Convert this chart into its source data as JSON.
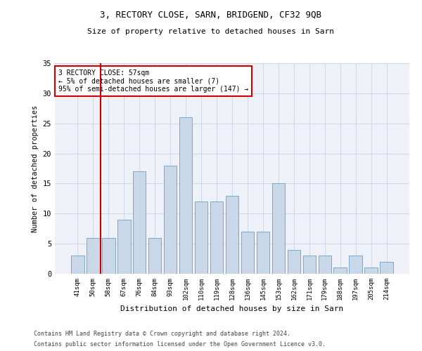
{
  "title1": "3, RECTORY CLOSE, SARN, BRIDGEND, CF32 9QB",
  "title2": "Size of property relative to detached houses in Sarn",
  "xlabel": "Distribution of detached houses by size in Sarn",
  "ylabel": "Number of detached properties",
  "categories": [
    "41sqm",
    "50sqm",
    "58sqm",
    "67sqm",
    "76sqm",
    "84sqm",
    "93sqm",
    "102sqm",
    "110sqm",
    "119sqm",
    "128sqm",
    "136sqm",
    "145sqm",
    "153sqm",
    "162sqm",
    "171sqm",
    "179sqm",
    "188sqm",
    "197sqm",
    "205sqm",
    "214sqm"
  ],
  "values": [
    3,
    6,
    6,
    9,
    17,
    6,
    18,
    26,
    12,
    12,
    13,
    7,
    7,
    15,
    4,
    3,
    3,
    1,
    3,
    1,
    2
  ],
  "bar_color": "#c8d8e8",
  "bar_edge_color": "#7aaac8",
  "grid_color": "#d0d8e8",
  "background_color": "#eef2f8",
  "annotation_line1": "3 RECTORY CLOSE: 57sqm",
  "annotation_line2": "← 5% of detached houses are smaller (7)",
  "annotation_line3": "95% of semi-detached houses are larger (147) →",
  "annotation_box_color": "#ffffff",
  "annotation_box_edge": "#cc0000",
  "red_line_x": 1.5,
  "ylim": [
    0,
    35
  ],
  "yticks": [
    0,
    5,
    10,
    15,
    20,
    25,
    30,
    35
  ],
  "footer1": "Contains HM Land Registry data © Crown copyright and database right 2024.",
  "footer2": "Contains public sector information licensed under the Open Government Licence v3.0."
}
